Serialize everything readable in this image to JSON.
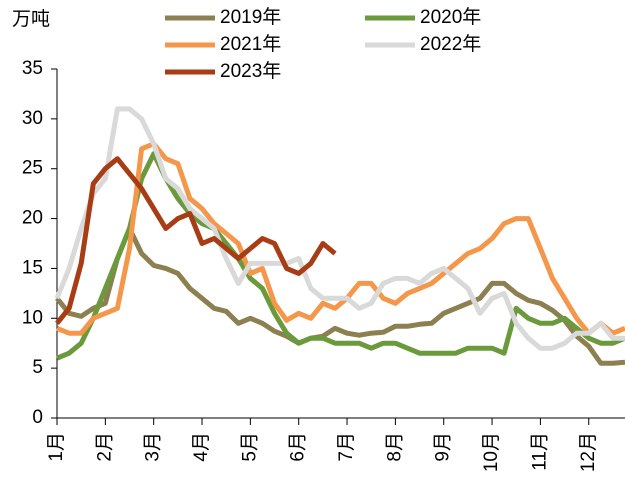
{
  "chart_data": {
    "type": "line",
    "ylabel": "万吨",
    "x": [
      1,
      1.25,
      1.5,
      1.75,
      2,
      2.25,
      2.5,
      2.75,
      3,
      3.25,
      3.5,
      3.75,
      4,
      4.25,
      4.5,
      4.75,
      5,
      5.25,
      5.5,
      5.75,
      6,
      6.25,
      6.5,
      6.75,
      7,
      7.25,
      7.5,
      7.75,
      8,
      8.25,
      8.5,
      8.75,
      9,
      9.25,
      9.5,
      9.75,
      10,
      10.25,
      10.5,
      10.75,
      11,
      11.25,
      11.5,
      11.75,
      12,
      12.25,
      12.5,
      12.75
    ],
    "xlim": [
      1,
      12.75
    ],
    "xticks": [
      {
        "value": 1,
        "label": "1月"
      },
      {
        "value": 2,
        "label": "2月"
      },
      {
        "value": 3,
        "label": "3月"
      },
      {
        "value": 4,
        "label": "4月"
      },
      {
        "value": 5,
        "label": "5月"
      },
      {
        "value": 6,
        "label": "6月"
      },
      {
        "value": 7,
        "label": "7月"
      },
      {
        "value": 8,
        "label": "8月"
      },
      {
        "value": 9,
        "label": "9月"
      },
      {
        "value": 10,
        "label": "10月"
      },
      {
        "value": 11,
        "label": "11月"
      },
      {
        "value": 12,
        "label": "12月"
      }
    ],
    "ylim": [
      0,
      35
    ],
    "yticks": [
      0,
      5,
      10,
      15,
      20,
      25,
      30,
      35
    ],
    "grid": false,
    "series": [
      {
        "name": "2019年",
        "color": "#8c8050",
        "values": [
          12,
          10.5,
          10.2,
          11,
          11.5,
          16,
          19,
          16.5,
          15.3,
          15,
          14.5,
          13,
          12,
          11,
          10.7,
          9.5,
          10,
          9.5,
          8.7,
          8.2,
          7.5,
          8,
          8.2,
          9,
          8.5,
          8.3,
          8.5,
          8.6,
          9.2,
          9.2,
          9.4,
          9.5,
          10.5,
          11,
          11.5,
          12,
          13.5,
          13.5,
          12.5,
          11.8,
          11.5,
          10.8,
          9.8,
          8.2,
          7.2,
          5.5,
          5.5,
          5.6
        ]
      },
      {
        "name": "2020年",
        "color": "#6b9a3c",
        "values": [
          6,
          6.5,
          7.5,
          10,
          13,
          16,
          19,
          24,
          26.5,
          24,
          22,
          20.5,
          19.5,
          19,
          17.5,
          16,
          14,
          13,
          10.5,
          8.5,
          7.5,
          8,
          8,
          7.5,
          7.5,
          7.5,
          7,
          7.5,
          7.5,
          7,
          6.5,
          6.5,
          6.5,
          6.5,
          7,
          7,
          7,
          6.5,
          11,
          10,
          9.5,
          9.5,
          10,
          9,
          8,
          7.5,
          7.5,
          8
        ]
      },
      {
        "name": "2021年",
        "color": "#f5974a",
        "values": [
          9,
          8.5,
          8.5,
          10,
          10.5,
          11,
          17,
          27,
          27.5,
          26,
          25.5,
          22,
          21,
          19.5,
          18.5,
          17.5,
          14.5,
          15,
          11.5,
          9.8,
          10.5,
          10,
          11.5,
          11,
          12,
          13.5,
          13.5,
          12,
          11.5,
          12.5,
          13,
          13.5,
          14.5,
          15.5,
          16.5,
          17,
          18,
          19.5,
          20,
          20,
          17,
          14,
          12,
          10,
          8.5,
          9.5,
          8.5,
          9
        ]
      },
      {
        "name": "2022年",
        "color": "#d9d9d9",
        "values": [
          12,
          15,
          19,
          22.5,
          24,
          31,
          31,
          30,
          27.5,
          24,
          23,
          21,
          20,
          19,
          16,
          13.5,
          15.5,
          15.5,
          15.5,
          15.5,
          16,
          13,
          12,
          12,
          12,
          11,
          11.5,
          13.5,
          14,
          14,
          13.5,
          14.5,
          15,
          14,
          13,
          10.5,
          12,
          12.5,
          9.5,
          8,
          7,
          7,
          7.5,
          8.5,
          8.5,
          9.5,
          8,
          8
        ]
      },
      {
        "name": "2023年",
        "color": "#a83c14",
        "values": [
          9.5,
          11,
          15.5,
          23.5,
          25,
          26,
          24.5,
          23,
          21,
          19,
          20,
          20.5,
          17.5,
          18,
          17,
          16,
          17,
          18,
          17.5,
          15,
          14.5,
          15.5,
          17.5,
          16.5,
          null,
          null,
          null,
          null,
          null,
          null,
          null,
          null,
          null,
          null,
          null,
          null,
          null,
          null,
          null,
          null,
          null,
          null,
          null,
          null,
          null,
          null,
          null,
          null
        ]
      }
    ]
  }
}
